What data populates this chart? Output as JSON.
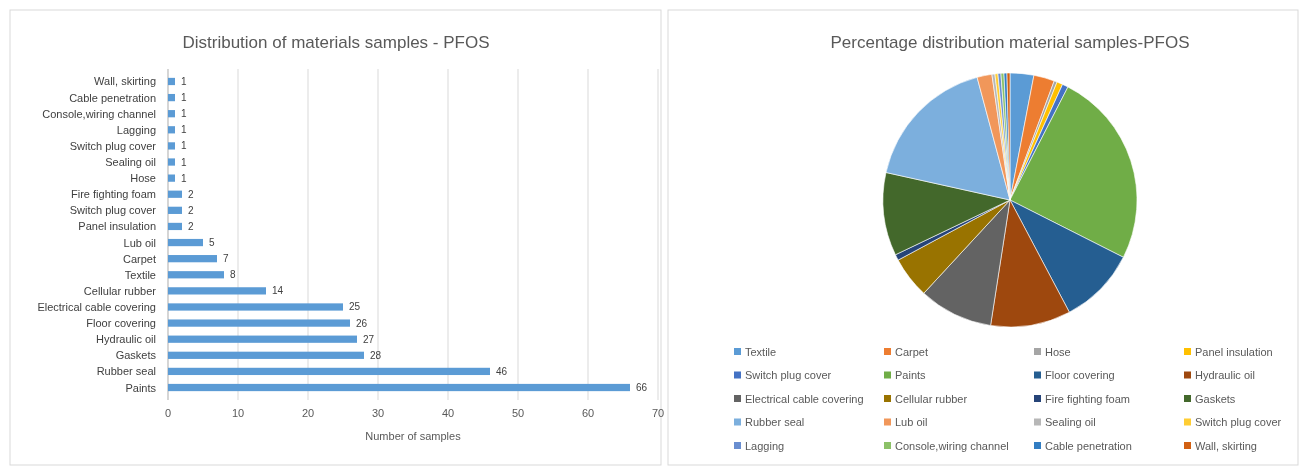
{
  "chart_data": [
    {
      "type": "bar",
      "orientation": "horizontal",
      "title": "Distribution of materials samples - PFOS",
      "xlabel": "Number of samples",
      "categories": [
        "Wall, skirting",
        "Cable penetration",
        "Console,wiring channel",
        "Lagging",
        "Switch plug cover",
        "Sealing oil",
        "Hose",
        "Fire fighting foam",
        "Switch plug cover",
        "Panel insulation",
        "Lub oil",
        "Carpet",
        "Textile",
        "Cellular rubber",
        "Electrical cable covering",
        "Floor covering",
        "Hydraulic oil",
        "Gaskets",
        "Rubber seal",
        "Paints"
      ],
      "values": [
        1,
        1,
        1,
        1,
        1,
        1,
        1,
        2,
        2,
        2,
        5,
        7,
        8,
        14,
        25,
        26,
        27,
        28,
        46,
        66
      ],
      "color": "#5b9bd5",
      "xlim": [
        0,
        70
      ],
      "xticks": [
        0,
        10,
        20,
        30,
        40,
        50,
        60,
        70
      ],
      "grid": "x",
      "data_labels": true
    },
    {
      "type": "pie",
      "title": "Percentage distribution material samples-PFOS",
      "legend": "bottom",
      "categories": [
        "Textile",
        "Carpet",
        "Hose",
        "Panel insulation",
        "Switch plug cover",
        "Paints",
        "Floor covering",
        "Hydraulic oil",
        "Electrical cable covering",
        "Cellular rubber",
        "Fire fighting foam",
        "Gaskets",
        "Rubber seal",
        "Lub oil",
        "Sealing oil",
        "Switch plug cover",
        "Lagging",
        "Console,wiring channel",
        "Cable penetration",
        "Wall, skirting"
      ],
      "values": [
        3.02,
        2.64,
        0.38,
        0.75,
        0.75,
        24.91,
        9.81,
        10.19,
        9.43,
        5.28,
        0.75,
        10.57,
        17.36,
        1.89,
        0.38,
        0.38,
        0.38,
        0.38,
        0.38,
        0.38
      ],
      "colors": [
        "#5b9bd5",
        "#ed7d31",
        "#a5a5a5",
        "#ffc000",
        "#4472c4",
        "#70ad47",
        "#255e91",
        "#9e480e",
        "#636363",
        "#997300",
        "#264478",
        "#43682b",
        "#7cafdd",
        "#f1975a",
        "#b7b7b7",
        "#ffcd33",
        "#698ed0",
        "#8cc168",
        "#327dc2",
        "#d26012"
      ]
    }
  ]
}
